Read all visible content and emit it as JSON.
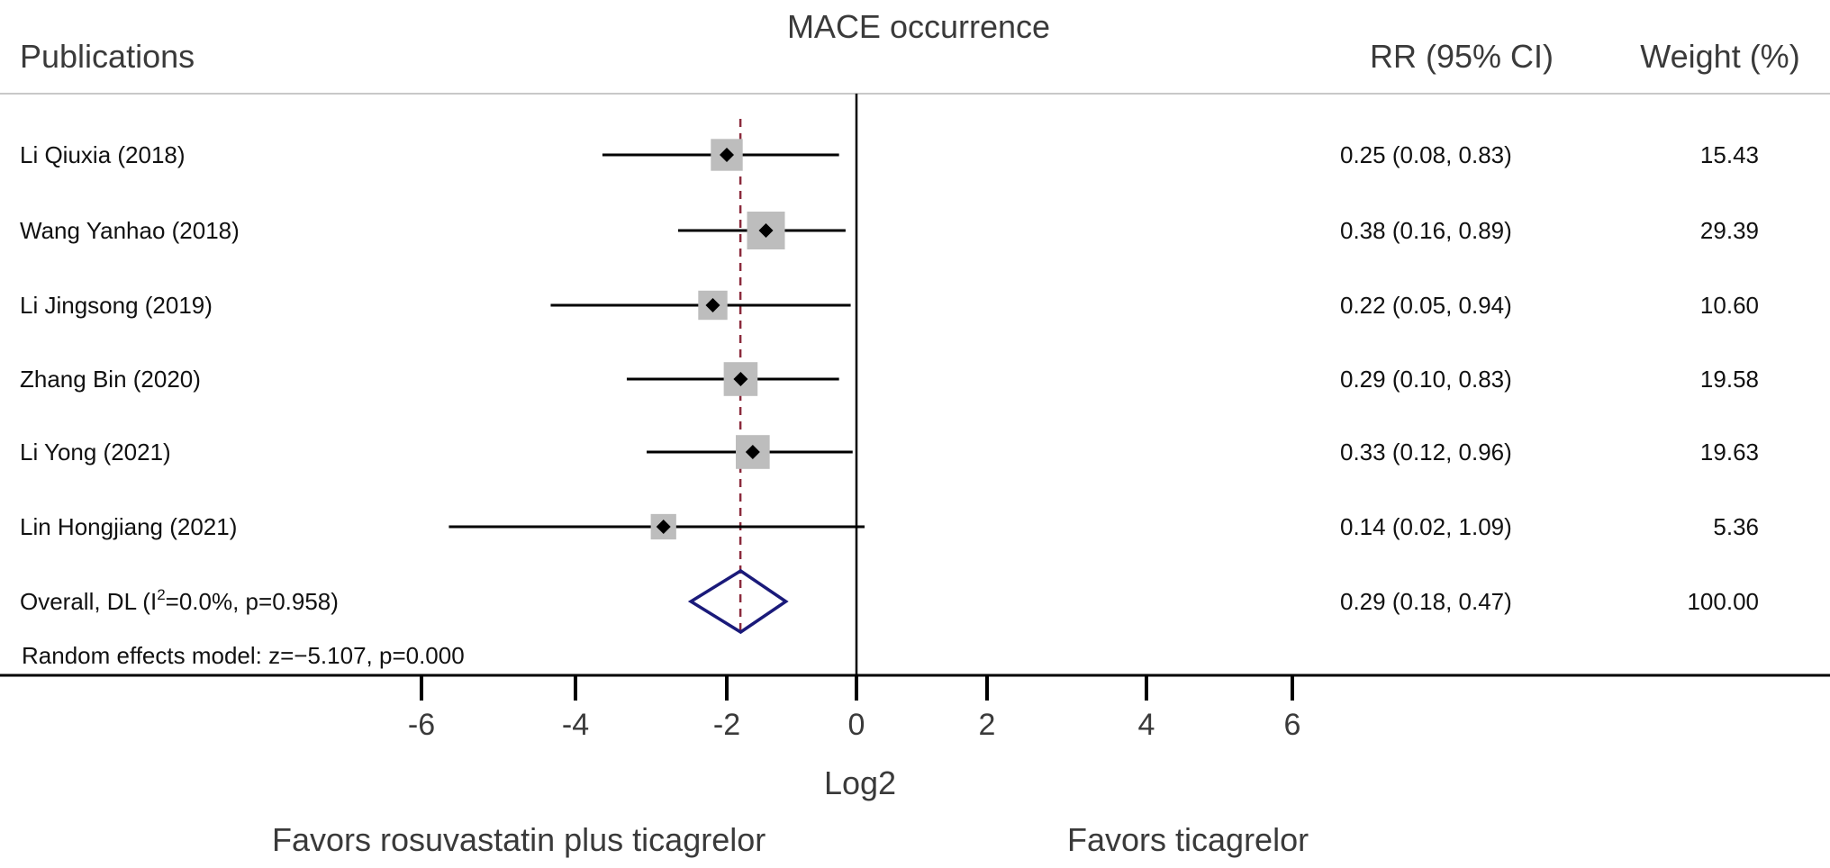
{
  "header": {
    "title": "MACE occurrence",
    "col_publications": "Publications",
    "col_rr": "RR (95% CI)",
    "col_weight": "Weight (%)"
  },
  "footer": {
    "model_note": "Random effects model: z=−5.107, p=0.000",
    "xlabel": "Log2",
    "favors_left": "Favors rosuvastatin plus ticagrelor",
    "favors_right": "Favors ticagrelor"
  },
  "colors": {
    "line": "#000000",
    "weight_box": "#bdbdbd",
    "reference_line": "#8b2a3c",
    "diamond": "#1a1a7a",
    "header_rule": "#c8c8c8"
  },
  "chart_data": {
    "type": "forest",
    "x_scale": "log2",
    "xlabel": "Log2",
    "xlim": [
      -6,
      6
    ],
    "x_ticks": [
      -6,
      -4,
      -2,
      0,
      2,
      4,
      6
    ],
    "null_line": 0,
    "pooled_reference_line": -1.79,
    "studies": [
      {
        "label": "Li Qiuxia (2018)",
        "ci_text": "0.25 (0.08, 0.83)",
        "weight_text": "15.43",
        "rr": 0.25,
        "lower": 0.08,
        "upper": 0.83,
        "weight": 15.43
      },
      {
        "label": "Wang Yanhao (2018)",
        "ci_text": "0.38 (0.16, 0.89)",
        "weight_text": "29.39",
        "rr": 0.38,
        "lower": 0.16,
        "upper": 0.89,
        "weight": 29.39
      },
      {
        "label": "Li Jingsong (2019)",
        "ci_text": "0.22 (0.05, 0.94)",
        "weight_text": "10.60",
        "rr": 0.22,
        "lower": 0.05,
        "upper": 0.94,
        "weight": 10.6
      },
      {
        "label": "Zhang Bin (2020)",
        "ci_text": "0.29 (0.10, 0.83)",
        "weight_text": "19.58",
        "rr": 0.29,
        "lower": 0.1,
        "upper": 0.83,
        "weight": 19.58
      },
      {
        "label": "Li Yong (2021)",
        "ci_text": "0.33 (0.12, 0.96)",
        "weight_text": "19.63",
        "rr": 0.33,
        "lower": 0.12,
        "upper": 0.96,
        "weight": 19.63
      },
      {
        "label": "Lin Hongjiang (2021)",
        "ci_text": "0.14 (0.02, 1.09)",
        "weight_text": "5.36",
        "rr": 0.14,
        "lower": 0.02,
        "upper": 1.09,
        "weight": 5.36
      }
    ],
    "overall": {
      "label_prefix": "Overall, DL (I",
      "label_sup": "2",
      "label_suffix": "=0.0%, p=0.958)",
      "ci_text": "0.29 (0.18, 0.47)",
      "weight_text": "100.00",
      "rr": 0.29,
      "lower": 0.18,
      "upper": 0.47
    }
  }
}
